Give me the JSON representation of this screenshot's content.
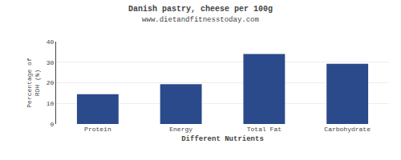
{
  "chart_data": {
    "type": "bar",
    "title": "Danish pastry, cheese per 100g",
    "subtitle": "www.dietandfitnesstoday.com",
    "xlabel": "Different Nutrients",
    "ylabel": "Percentage of\nRDH (%)",
    "categories": [
      "Protein",
      "Energy",
      "Total Fat",
      "Carbohydrate"
    ],
    "values": [
      14.5,
      19.3,
      34.0,
      29.2
    ],
    "color": "#2b4a8b",
    "ylim": [
      0,
      40
    ],
    "yticks": [
      0,
      10,
      20,
      30,
      40
    ],
    "grid": true
  }
}
